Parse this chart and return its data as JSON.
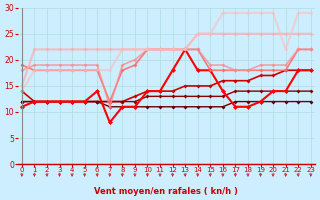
{
  "x": [
    0,
    1,
    2,
    3,
    4,
    5,
    6,
    7,
    8,
    9,
    10,
    11,
    12,
    13,
    14,
    15,
    16,
    17,
    18,
    19,
    20,
    21,
    22,
    23
  ],
  "lines": [
    {
      "y": [
        14,
        12,
        12,
        12,
        12,
        12,
        12,
        12,
        12,
        13,
        14,
        14,
        14,
        15,
        15,
        15,
        16,
        16,
        16,
        17,
        17,
        18,
        18,
        18
      ],
      "color": "#cc0000",
      "lw": 1.2,
      "marker": "D",
      "ms": 2.0,
      "alpha": 1.0
    },
    {
      "y": [
        12,
        12,
        12,
        12,
        12,
        12,
        12,
        12,
        12,
        12,
        13,
        13,
        13,
        13,
        13,
        13,
        13,
        14,
        14,
        14,
        14,
        14,
        14,
        14
      ],
      "color": "#880000",
      "lw": 1.0,
      "marker": "D",
      "ms": 2.0,
      "alpha": 1.0
    },
    {
      "y": [
        12,
        12,
        12,
        12,
        12,
        12,
        12,
        11,
        11,
        11,
        11,
        11,
        11,
        11,
        11,
        11,
        11,
        12,
        12,
        12,
        12,
        12,
        12,
        12
      ],
      "color": "#660000",
      "lw": 1.0,
      "marker": "D",
      "ms": 2.0,
      "alpha": 1.0
    },
    {
      "y": [
        11,
        12,
        12,
        12,
        12,
        12,
        14,
        8,
        11,
        11,
        14,
        14,
        18,
        22,
        18,
        18,
        14,
        11,
        11,
        12,
        14,
        14,
        18,
        18
      ],
      "color": "#ff0000",
      "lw": 1.5,
      "marker": "D",
      "ms": 2.5,
      "alpha": 1.0
    },
    {
      "y": [
        19,
        18,
        18,
        18,
        18,
        18,
        18,
        12,
        18,
        19,
        22,
        22,
        22,
        22,
        22,
        18,
        18,
        18,
        18,
        18,
        18,
        18,
        22,
        22
      ],
      "color": "#ff6666",
      "lw": 1.2,
      "marker": "D",
      "ms": 2.0,
      "alpha": 0.85
    },
    {
      "y": [
        18,
        19,
        19,
        19,
        19,
        19,
        19,
        11,
        19,
        20,
        22,
        22,
        22,
        22,
        22,
        19,
        19,
        18,
        18,
        19,
        19,
        19,
        22,
        22
      ],
      "color": "#ff8888",
      "lw": 1.2,
      "marker": "D",
      "ms": 2.0,
      "alpha": 0.75
    },
    {
      "y": [
        15,
        22,
        22,
        22,
        22,
        22,
        22,
        22,
        22,
        22,
        22,
        22,
        22,
        22,
        25,
        25,
        25,
        25,
        25,
        25,
        25,
        25,
        25,
        25
      ],
      "color": "#ffaaaa",
      "lw": 1.5,
      "marker": "D",
      "ms": 2.0,
      "alpha": 0.7
    },
    {
      "y": [
        14,
        18,
        18,
        18,
        18,
        18,
        18,
        18,
        22,
        22,
        22,
        22,
        22,
        22,
        25,
        25,
        29,
        29,
        29,
        29,
        29,
        22,
        29,
        29
      ],
      "color": "#ffbbbb",
      "lw": 1.5,
      "marker": "D",
      "ms": 2.0,
      "alpha": 0.6
    }
  ],
  "xlabel": "Vent moyen/en rafales ( kn/h )",
  "xlim": [
    0,
    23
  ],
  "ylim": [
    0,
    30
  ],
  "yticks": [
    0,
    5,
    10,
    15,
    20,
    25,
    30
  ],
  "xticks": [
    0,
    1,
    2,
    3,
    4,
    5,
    6,
    7,
    8,
    9,
    10,
    11,
    12,
    13,
    14,
    15,
    16,
    17,
    18,
    19,
    20,
    21,
    22,
    23
  ],
  "bg_color": "#cceeff",
  "grid_color": "#aadddd",
  "tick_color": "#cc0000",
  "label_color": "#cc0000",
  "arrow_color": "#cc2222"
}
